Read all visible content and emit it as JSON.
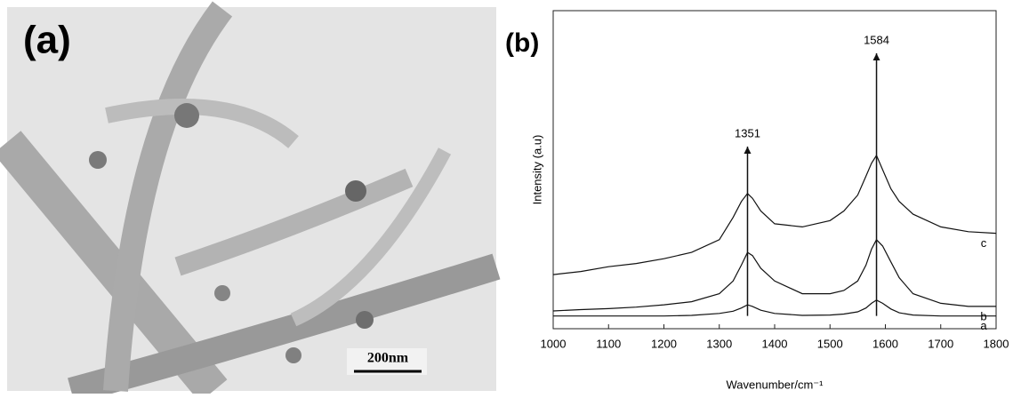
{
  "panel_a": {
    "label": "(a)",
    "scale_bar": "200nm"
  },
  "chart_data": {
    "type": "line",
    "label": "(b)",
    "x_label": "Wavenumber/cm⁻¹",
    "y_label": "Intensity (a.u)",
    "x": [
      1000,
      1050,
      1100,
      1150,
      1200,
      1250,
      1300,
      1325,
      1340,
      1351,
      1360,
      1375,
      1400,
      1450,
      1500,
      1525,
      1550,
      1565,
      1575,
      1584,
      1595,
      1610,
      1625,
      1650,
      1700,
      1750,
      1800
    ],
    "series": [
      {
        "name": "a",
        "color": "#111111",
        "values": [
          4,
          4,
          4,
          4,
          4,
          4.2,
          4.8,
          5.5,
          6.5,
          7.5,
          7,
          5.8,
          4.8,
          4.2,
          4.3,
          4.6,
          5.3,
          6.5,
          8,
          9,
          8,
          6.2,
          5,
          4.3,
          4,
          4,
          4
        ]
      },
      {
        "name": "b",
        "color": "#111111",
        "values": [
          5.6,
          6,
          6.3,
          6.8,
          7.5,
          8.5,
          11,
          15,
          20,
          24,
          23,
          19,
          15,
          11,
          11,
          12,
          15,
          20,
          25,
          28,
          26,
          21,
          16,
          11,
          8,
          7,
          7
        ]
      },
      {
        "name": "c",
        "color": "#111111",
        "values": [
          17,
          18,
          19.5,
          20.5,
          22,
          24,
          28,
          35,
          40,
          42.5,
          41,
          37,
          33,
          32,
          34,
          37,
          42,
          48,
          52,
          54.5,
          50,
          44,
          40,
          36,
          32,
          30.5,
          30
        ]
      }
    ],
    "peaks": [
      1351,
      1584
    ],
    "xlim": [
      1000,
      1800
    ],
    "xticks": [
      1000,
      1100,
      1200,
      1300,
      1400,
      1500,
      1600,
      1700,
      1800
    ],
    "ylim": [
      0,
      100
    ]
  }
}
